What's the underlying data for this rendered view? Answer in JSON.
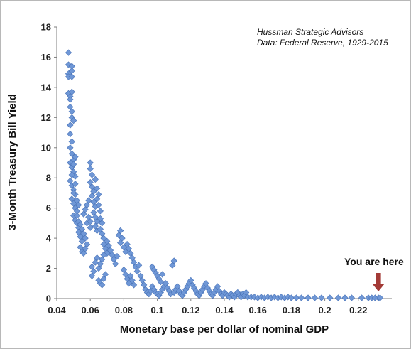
{
  "chart_data": {
    "type": "scatter",
    "title": "",
    "xlabel": "Monetary base per dollar of nominal GDP",
    "ylabel": "3-Month Treasury Bill Yield",
    "xlim": [
      0.04,
      0.24
    ],
    "ylim": [
      0,
      18
    ],
    "x_ticks": [
      "0.04",
      "0.06",
      "0.08",
      "0.1",
      "0.12",
      "0.14",
      "0.16",
      "0.18",
      "0.2",
      "0.22"
    ],
    "y_ticks": [
      "0",
      "2",
      "4",
      "6",
      "8",
      "10",
      "12",
      "14",
      "16",
      "18"
    ],
    "grid": false,
    "marker_color": "#6f97d6",
    "marker_edge_color": "#4a74b8",
    "annotations": {
      "source_line1": "Hussman Strategic Advisors",
      "source_line2": "Data: Federal Reserve, 1929-2015",
      "callout": "You are here",
      "arrow_color": "#a33a36",
      "arrow_target": {
        "x": 0.232,
        "y": 0.0
      }
    },
    "points": [
      [
        0.047,
        16.3
      ],
      [
        0.047,
        15.5
      ],
      [
        0.047,
        14.9
      ],
      [
        0.047,
        14.7
      ],
      [
        0.049,
        15.4
      ],
      [
        0.049,
        15.1
      ],
      [
        0.049,
        14.7
      ],
      [
        0.047,
        13.6
      ],
      [
        0.048,
        13.4
      ],
      [
        0.049,
        13.7
      ],
      [
        0.048,
        13.2
      ],
      [
        0.048,
        12.7
      ],
      [
        0.049,
        12.4
      ],
      [
        0.049,
        12.0
      ],
      [
        0.05,
        11.8
      ],
      [
        0.048,
        11.5
      ],
      [
        0.048,
        10.9
      ],
      [
        0.049,
        10.4
      ],
      [
        0.048,
        10.0
      ],
      [
        0.049,
        9.6
      ],
      [
        0.05,
        9.2
      ],
      [
        0.048,
        9.0
      ],
      [
        0.049,
        8.7
      ],
      [
        0.05,
        8.4
      ],
      [
        0.051,
        8.1
      ],
      [
        0.048,
        7.8
      ],
      [
        0.049,
        7.5
      ],
      [
        0.05,
        7.2
      ],
      [
        0.051,
        6.9
      ],
      [
        0.049,
        6.6
      ],
      [
        0.05,
        6.3
      ],
      [
        0.051,
        6.0
      ],
      [
        0.052,
        5.8
      ],
      [
        0.05,
        5.5
      ],
      [
        0.051,
        5.2
      ],
      [
        0.052,
        5.0
      ],
      [
        0.053,
        4.7
      ],
      [
        0.05,
        7.0
      ],
      [
        0.051,
        7.6
      ],
      [
        0.052,
        6.5
      ],
      [
        0.053,
        6.2
      ],
      [
        0.049,
        8.2
      ],
      [
        0.05,
        8.9
      ],
      [
        0.051,
        9.4
      ],
      [
        0.052,
        5.5
      ],
      [
        0.053,
        4.4
      ],
      [
        0.054,
        4.1
      ],
      [
        0.055,
        3.8
      ],
      [
        0.054,
        3.4
      ],
      [
        0.055,
        3.1
      ],
      [
        0.056,
        3.0
      ],
      [
        0.057,
        3.3
      ],
      [
        0.053,
        5.1
      ],
      [
        0.054,
        4.9
      ],
      [
        0.055,
        4.6
      ],
      [
        0.056,
        4.3
      ],
      [
        0.057,
        4.0
      ],
      [
        0.058,
        3.6
      ],
      [
        0.058,
        5.0
      ],
      [
        0.056,
        5.6
      ],
      [
        0.057,
        5.9
      ],
      [
        0.058,
        6.2
      ],
      [
        0.059,
        6.5
      ],
      [
        0.059,
        5.4
      ],
      [
        0.06,
        5.1
      ],
      [
        0.06,
        4.7
      ],
      [
        0.06,
        9.0
      ],
      [
        0.06,
        8.6
      ],
      [
        0.061,
        8.2
      ],
      [
        0.06,
        7.7
      ],
      [
        0.061,
        7.4
      ],
      [
        0.062,
        7.1
      ],
      [
        0.061,
        6.8
      ],
      [
        0.062,
        6.4
      ],
      [
        0.063,
        6.1
      ],
      [
        0.062,
        5.7
      ],
      [
        0.063,
        5.4
      ],
      [
        0.064,
        5.1
      ],
      [
        0.063,
        4.8
      ],
      [
        0.064,
        4.5
      ],
      [
        0.063,
        7.9
      ],
      [
        0.064,
        7.3
      ],
      [
        0.065,
        6.9
      ],
      [
        0.064,
        6.6
      ],
      [
        0.065,
        6.2
      ],
      [
        0.066,
        5.8
      ],
      [
        0.066,
        5.3
      ],
      [
        0.067,
        5.0
      ],
      [
        0.066,
        4.6
      ],
      [
        0.067,
        4.3
      ],
      [
        0.068,
        4.0
      ],
      [
        0.068,
        3.6
      ],
      [
        0.069,
        3.3
      ],
      [
        0.07,
        3.0
      ],
      [
        0.061,
        2.1
      ],
      [
        0.062,
        1.8
      ],
      [
        0.061,
        1.5
      ],
      [
        0.063,
        2.4
      ],
      [
        0.064,
        2.7
      ],
      [
        0.065,
        1.2
      ],
      [
        0.066,
        1.0
      ],
      [
        0.067,
        0.9
      ],
      [
        0.068,
        1.3
      ],
      [
        0.069,
        1.6
      ],
      [
        0.065,
        2.0
      ],
      [
        0.066,
        2.3
      ],
      [
        0.067,
        2.6
      ],
      [
        0.068,
        2.9
      ],
      [
        0.07,
        3.8
      ],
      [
        0.071,
        3.5
      ],
      [
        0.072,
        3.2
      ],
      [
        0.073,
        2.9
      ],
      [
        0.074,
        2.6
      ],
      [
        0.075,
        2.3
      ],
      [
        0.076,
        2.8
      ],
      [
        0.077,
        4.2
      ],
      [
        0.078,
        4.5
      ],
      [
        0.079,
        4.0
      ],
      [
        0.078,
        3.7
      ],
      [
        0.08,
        3.4
      ],
      [
        0.081,
        3.1
      ],
      [
        0.082,
        3.6
      ],
      [
        0.083,
        3.3
      ],
      [
        0.084,
        3.0
      ],
      [
        0.085,
        2.7
      ],
      [
        0.086,
        2.4
      ],
      [
        0.087,
        2.1
      ],
      [
        0.088,
        1.8
      ],
      [
        0.089,
        2.2
      ],
      [
        0.08,
        1.9
      ],
      [
        0.081,
        1.6
      ],
      [
        0.082,
        1.3
      ],
      [
        0.083,
        1.0
      ],
      [
        0.084,
        1.5
      ],
      [
        0.085,
        1.2
      ],
      [
        0.086,
        0.9
      ],
      [
        0.09,
        1.5
      ],
      [
        0.091,
        1.2
      ],
      [
        0.092,
        0.9
      ],
      [
        0.093,
        0.6
      ],
      [
        0.094,
        0.4
      ],
      [
        0.095,
        0.3
      ],
      [
        0.096,
        0.5
      ],
      [
        0.097,
        2.1
      ],
      [
        0.098,
        1.9
      ],
      [
        0.099,
        1.7
      ],
      [
        0.1,
        1.5
      ],
      [
        0.101,
        1.3
      ],
      [
        0.102,
        1.1
      ],
      [
        0.103,
        1.6
      ],
      [
        0.097,
        0.8
      ],
      [
        0.098,
        0.6
      ],
      [
        0.099,
        0.4
      ],
      [
        0.1,
        0.3
      ],
      [
        0.101,
        0.2
      ],
      [
        0.102,
        0.4
      ],
      [
        0.103,
        0.6
      ],
      [
        0.104,
        0.8
      ],
      [
        0.105,
        1.0
      ],
      [
        0.106,
        0.7
      ],
      [
        0.107,
        0.5
      ],
      [
        0.108,
        0.3
      ],
      [
        0.109,
        2.2
      ],
      [
        0.11,
        2.5
      ],
      [
        0.11,
        0.4
      ],
      [
        0.111,
        0.6
      ],
      [
        0.112,
        0.8
      ],
      [
        0.113,
        0.5
      ],
      [
        0.114,
        0.3
      ],
      [
        0.115,
        0.2
      ],
      [
        0.116,
        0.4
      ],
      [
        0.117,
        0.6
      ],
      [
        0.118,
        0.8
      ],
      [
        0.119,
        1.0
      ],
      [
        0.12,
        1.2
      ],
      [
        0.121,
        0.9
      ],
      [
        0.122,
        0.7
      ],
      [
        0.123,
        0.5
      ],
      [
        0.124,
        0.3
      ],
      [
        0.125,
        0.2
      ],
      [
        0.126,
        0.4
      ],
      [
        0.127,
        0.6
      ],
      [
        0.128,
        0.8
      ],
      [
        0.129,
        1.0
      ],
      [
        0.13,
        0.7
      ],
      [
        0.131,
        0.5
      ],
      [
        0.132,
        0.3
      ],
      [
        0.133,
        0.2
      ],
      [
        0.134,
        0.4
      ],
      [
        0.135,
        0.6
      ],
      [
        0.136,
        0.8
      ],
      [
        0.137,
        0.5
      ],
      [
        0.138,
        0.3
      ],
      [
        0.139,
        0.2
      ],
      [
        0.14,
        0.4
      ],
      [
        0.141,
        0.3
      ],
      [
        0.142,
        0.2
      ],
      [
        0.143,
        0.1
      ],
      [
        0.144,
        0.3
      ],
      [
        0.145,
        0.2
      ],
      [
        0.146,
        0.1
      ],
      [
        0.147,
        0.3
      ],
      [
        0.148,
        0.4
      ],
      [
        0.149,
        0.2
      ],
      [
        0.15,
        0.1
      ],
      [
        0.151,
        0.3
      ],
      [
        0.152,
        0.2
      ],
      [
        0.153,
        0.4
      ],
      [
        0.154,
        0.1
      ],
      [
        0.156,
        0.1
      ],
      [
        0.158,
        0.1
      ],
      [
        0.16,
        0.05
      ],
      [
        0.162,
        0.1
      ],
      [
        0.164,
        0.05
      ],
      [
        0.166,
        0.1
      ],
      [
        0.168,
        0.05
      ],
      [
        0.17,
        0.1
      ],
      [
        0.172,
        0.05
      ],
      [
        0.174,
        0.1
      ],
      [
        0.176,
        0.05
      ],
      [
        0.178,
        0.1
      ],
      [
        0.18,
        0.05
      ],
      [
        0.183,
        0.05
      ],
      [
        0.186,
        0.05
      ],
      [
        0.19,
        0.05
      ],
      [
        0.194,
        0.05
      ],
      [
        0.198,
        0.05
      ],
      [
        0.203,
        0.05
      ],
      [
        0.208,
        0.05
      ],
      [
        0.212,
        0.05
      ],
      [
        0.216,
        0.05
      ],
      [
        0.222,
        0.05
      ],
      [
        0.226,
        0.05
      ],
      [
        0.228,
        0.05
      ],
      [
        0.23,
        0.05
      ],
      [
        0.232,
        0.05
      ],
      [
        0.233,
        0.05
      ]
    ]
  }
}
